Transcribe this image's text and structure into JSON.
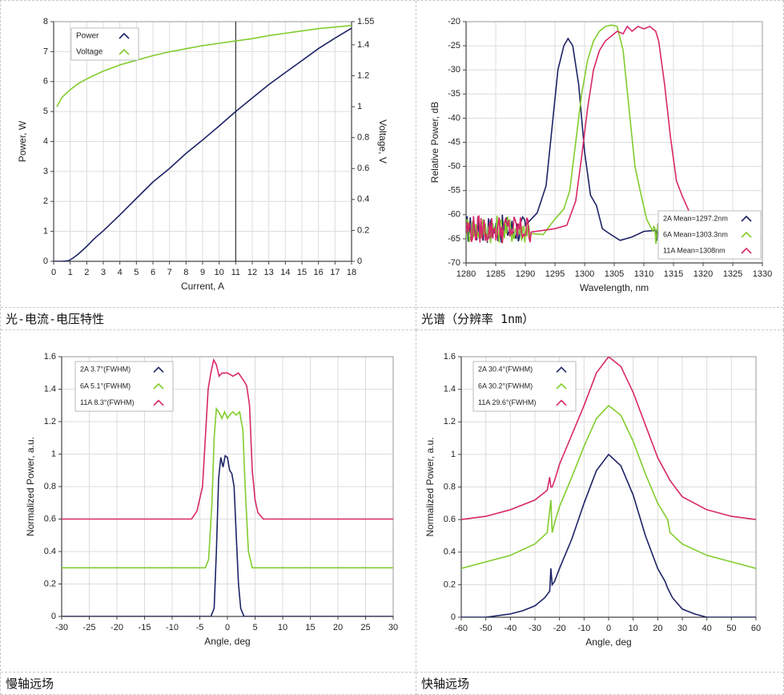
{
  "captions": {
    "liv": "光-电流-电压特性",
    "spectrum": "光谱（分辨率 1nm）",
    "slow_axis": "慢轴远场",
    "fast_axis": "快轴远场"
  },
  "colors": {
    "navy": "#1d2366",
    "green": "#82cc2e",
    "pink": "#d8286a",
    "grid": "#dcdcdc",
    "axis": "#444444"
  },
  "chart_data": [
    {
      "id": "liv",
      "type": "line",
      "title": "",
      "xlabel": "Current, A",
      "ylabel": "Power, W",
      "y2label": "Voltage, V",
      "xlim": [
        0,
        18
      ],
      "ylim": [
        0,
        8
      ],
      "y2lim": [
        0,
        1.55
      ],
      "xticks": [
        0,
        1,
        2,
        3,
        4,
        5,
        6,
        7,
        8,
        9,
        10,
        11,
        12,
        13,
        14,
        15,
        16,
        17,
        18
      ],
      "yticks": [
        0,
        1,
        2,
        3,
        4,
        5,
        6,
        7,
        8
      ],
      "y2ticks": [
        0,
        0.2,
        0.4,
        0.6,
        0.8,
        1,
        1.2,
        1.4,
        1.55
      ],
      "marker_line_x": 11,
      "legend": [
        "Power",
        "Voltage"
      ],
      "series": [
        {
          "name": "Power",
          "axis": "left",
          "color": "navy",
          "x": [
            0,
            0.5,
            0.9,
            1.2,
            1.5,
            2,
            2.5,
            3,
            4,
            5,
            6,
            7,
            8,
            9,
            10,
            11,
            12,
            13,
            14,
            15,
            16,
            17,
            18
          ],
          "y": [
            0,
            0,
            0.02,
            0.12,
            0.25,
            0.5,
            0.78,
            1.02,
            1.55,
            2.1,
            2.65,
            3.1,
            3.6,
            4.05,
            4.52,
            5.0,
            5.45,
            5.9,
            6.3,
            6.7,
            7.1,
            7.45,
            7.78
          ]
        },
        {
          "name": "Voltage",
          "axis": "right",
          "color": "green",
          "x": [
            0.2,
            0.5,
            1,
            1.5,
            2,
            3,
            4,
            5,
            6,
            7,
            8,
            9,
            10,
            11,
            12,
            13,
            14,
            15,
            16,
            17,
            18
          ],
          "y": [
            1.0,
            1.06,
            1.11,
            1.15,
            1.18,
            1.23,
            1.27,
            1.3,
            1.33,
            1.355,
            1.375,
            1.395,
            1.41,
            1.425,
            1.44,
            1.46,
            1.475,
            1.49,
            1.505,
            1.515,
            1.525
          ]
        }
      ]
    },
    {
      "id": "spectrum",
      "type": "line",
      "title": "",
      "xlabel": "Wavelength, nm",
      "ylabel": "Relative Power, dB",
      "xlim": [
        1280,
        1330
      ],
      "ylim": [
        -70,
        -20
      ],
      "xticks": [
        1280,
        1285,
        1290,
        1295,
        1300,
        1305,
        1310,
        1315,
        1320,
        1325,
        1330
      ],
      "yticks": [
        -70,
        -65,
        -60,
        -55,
        -50,
        -45,
        -40,
        -35,
        -30,
        -25,
        -20
      ],
      "legend": [
        "2A Mean=1297.2nm",
        "6A Mean=1303.3nm",
        "11A Mean=1308nm"
      ],
      "series": [
        {
          "name": "2A Mean=1297.2nm",
          "color": "navy",
          "x": [
            1290,
            1292,
            1293.5,
            1294.5,
            1295.5,
            1296.5,
            1297.2,
            1298,
            1299,
            1300,
            1301,
            1302,
            1303,
            1304,
            1306,
            1308,
            1310,
            1312
          ],
          "y": [
            -63,
            -60,
            -54,
            -42,
            -30,
            -25,
            -23.5,
            -25,
            -33,
            -47,
            -56,
            -60,
            -62,
            -63,
            -64,
            -64,
            -64,
            -64
          ]
        },
        {
          "name": "6A Mean=1303.3nm",
          "color": "green",
          "x": [
            1293,
            1295,
            1296.5,
            1297.5,
            1298.5,
            1299.5,
            1300.5,
            1301.5,
            1302.5,
            1303.5,
            1304.5,
            1305.5,
            1306.5,
            1307.5,
            1308.5,
            1309.5,
            1310.5,
            1311.5
          ],
          "y": [
            -63,
            -62,
            -59,
            -55,
            -45,
            -35,
            -28,
            -24,
            -22,
            -21,
            -20.7,
            -21,
            -26,
            -38,
            -50,
            -57,
            -61,
            -64
          ]
        },
        {
          "name": "11A Mean=1308nm",
          "color": "pink",
          "x": [
            1295,
            1297,
            1298.5,
            1299.5,
            1300.5,
            1301.5,
            1302.5,
            1303.5,
            1304.5,
            1305.5,
            1306.5,
            1307.2,
            1308,
            1309,
            1310,
            1311,
            1312,
            1312.5,
            1313.5,
            1314.5,
            1315.5,
            1316.5,
            1317.5,
            1318.5
          ],
          "y": [
            -62,
            -61,
            -57,
            -48,
            -38,
            -30,
            -26,
            -24,
            -23,
            -22,
            -22.5,
            -21,
            -22,
            -21,
            -21.5,
            -21,
            -22,
            -24,
            -33,
            -44,
            -53,
            -58,
            -60,
            -62
          ]
        }
      ],
      "noise_floor": {
        "x_start": 1280,
        "x_end": 1291,
        "level": -63,
        "amplitude": 3
      }
    },
    {
      "id": "slow_axis",
      "type": "line",
      "title": "",
      "xlabel": "Angle, deg",
      "ylabel": "Normalized Power, a.u.",
      "xlim": [
        -30,
        30
      ],
      "ylim": [
        0,
        1.6
      ],
      "xticks": [
        -30,
        -25,
        -20,
        -15,
        -10,
        -5,
        0,
        5,
        10,
        15,
        20,
        25,
        30
      ],
      "yticks": [
        0,
        0.2,
        0.4,
        0.6,
        0.8,
        1,
        1.2,
        1.4,
        1.6
      ],
      "legend": [
        "2A 3.7°(FWHM)",
        "6A 5.1°(FWHM)",
        "11A 8.3°(FWHM)"
      ],
      "series": [
        {
          "name": "2A 3.7°(FWHM)",
          "color": "navy",
          "x": [
            -30,
            -3,
            -2.4,
            -2,
            -1.6,
            -1.2,
            -0.8,
            -0.4,
            0,
            0.4,
            0.8,
            1.2,
            1.6,
            2,
            2.4,
            3,
            30
          ],
          "y": [
            0,
            0,
            0.05,
            0.4,
            0.85,
            0.98,
            0.92,
            0.99,
            0.98,
            0.9,
            0.88,
            0.8,
            0.5,
            0.2,
            0.05,
            0,
            0
          ]
        },
        {
          "name": "6A 5.1°(FWHM)",
          "color": "green",
          "x": [
            -30,
            -4,
            -3.4,
            -2.8,
            -2.4,
            -2,
            -1.4,
            -1,
            -0.5,
            0,
            0.6,
            1,
            1.6,
            2.2,
            2.8,
            3.2,
            3.8,
            4.5,
            30
          ],
          "y": [
            0.3,
            0.3,
            0.35,
            0.7,
            1.1,
            1.28,
            1.25,
            1.22,
            1.26,
            1.22,
            1.25,
            1.26,
            1.24,
            1.26,
            1.15,
            0.8,
            0.4,
            0.3,
            0.3
          ]
        },
        {
          "name": "11A 8.3°(FWHM)",
          "color": "pink",
          "x": [
            -30,
            -6.5,
            -5.5,
            -4.5,
            -4,
            -3.5,
            -3,
            -2.5,
            -2,
            -1.5,
            -1,
            0,
            1,
            2,
            3,
            3.5,
            4,
            4.5,
            5,
            5.5,
            6.5,
            30
          ],
          "y": [
            0.6,
            0.6,
            0.65,
            0.8,
            1.1,
            1.4,
            1.5,
            1.58,
            1.55,
            1.48,
            1.5,
            1.5,
            1.48,
            1.5,
            1.45,
            1.42,
            1.3,
            0.9,
            0.72,
            0.64,
            0.6,
            0.6
          ]
        }
      ]
    },
    {
      "id": "fast_axis",
      "type": "line",
      "title": "",
      "xlabel": "Angle, deg",
      "ylabel": "Normalized Power, a.u.",
      "xlim": [
        -60,
        60
      ],
      "ylim": [
        0,
        1.6
      ],
      "xticks": [
        -60,
        -50,
        -40,
        -30,
        -20,
        -10,
        0,
        10,
        20,
        30,
        40,
        50,
        60
      ],
      "yticks": [
        0,
        0.2,
        0.4,
        0.6,
        0.8,
        1,
        1.2,
        1.4,
        1.6
      ],
      "legend": [
        "2A 30.4°(FWHM)",
        "6A 30.2°(FWHM)",
        "11A 29.6°(FWHM)"
      ],
      "series": [
        {
          "name": "2A 30.4°(FWHM)",
          "color": "navy",
          "x": [
            -60,
            -50,
            -40,
            -35,
            -30,
            -26,
            -24,
            -23.5,
            -23,
            -22,
            -20,
            -15,
            -10,
            -5,
            0,
            5,
            10,
            15,
            20,
            23,
            24,
            26,
            30,
            35,
            40,
            50,
            60
          ],
          "y": [
            0,
            0,
            0.02,
            0.04,
            0.07,
            0.12,
            0.16,
            0.3,
            0.2,
            0.22,
            0.3,
            0.48,
            0.7,
            0.9,
            1.0,
            0.93,
            0.75,
            0.5,
            0.3,
            0.22,
            0.18,
            0.12,
            0.05,
            0.02,
            0,
            0,
            0
          ]
        },
        {
          "name": "6A 30.2°(FWHM)",
          "color": "green",
          "x": [
            -60,
            -50,
            -40,
            -30,
            -25,
            -23.5,
            -23,
            -22,
            -20,
            -15,
            -10,
            -5,
            0,
            5,
            10,
            15,
            20,
            24,
            25,
            30,
            40,
            50,
            60
          ],
          "y": [
            0.3,
            0.34,
            0.38,
            0.45,
            0.52,
            0.72,
            0.52,
            0.58,
            0.68,
            0.86,
            1.05,
            1.22,
            1.3,
            1.24,
            1.08,
            0.88,
            0.7,
            0.6,
            0.52,
            0.45,
            0.38,
            0.34,
            0.3
          ]
        },
        {
          "name": "11A 29.6°(FWHM)",
          "color": "pink",
          "x": [
            -60,
            -50,
            -40,
            -30,
            -25,
            -24,
            -23.5,
            -23,
            -22,
            -20,
            -15,
            -10,
            -5,
            0,
            5,
            10,
            15,
            20,
            25,
            30,
            40,
            50,
            60
          ],
          "y": [
            0.6,
            0.62,
            0.66,
            0.72,
            0.78,
            0.86,
            0.8,
            0.8,
            0.84,
            0.94,
            1.12,
            1.3,
            1.5,
            1.6,
            1.54,
            1.38,
            1.18,
            0.98,
            0.84,
            0.74,
            0.66,
            0.62,
            0.6
          ]
        }
      ]
    }
  ]
}
